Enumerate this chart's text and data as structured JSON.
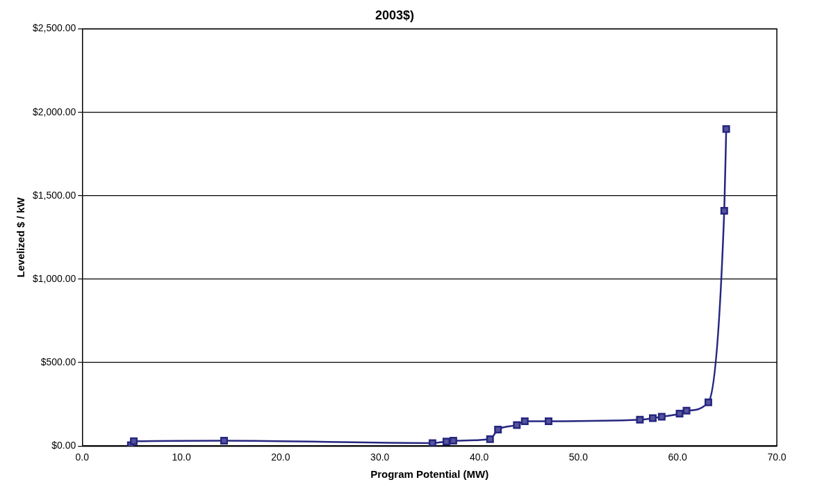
{
  "chart_data": {
    "type": "line",
    "title": "2003$)",
    "xlabel": "Program Potential (MW)",
    "ylabel": "Levelized $ / kW",
    "x": [
      4.9,
      5.2,
      14.3,
      35.3,
      36.7,
      37.4,
      41.1,
      41.9,
      43.8,
      44.6,
      47.0,
      56.2,
      57.5,
      58.4,
      60.2,
      60.9,
      63.1,
      64.7,
      64.9
    ],
    "series": [
      {
        "color": "#262680",
        "values": [
          5,
          29,
          32,
          18,
          27,
          32,
          41,
          99,
          126,
          149,
          149,
          158,
          167,
          176,
          194,
          212,
          262,
          1410,
          1900
        ]
      }
    ],
    "xlim": [
      0,
      70
    ],
    "xticks": [
      {
        "value": 0,
        "label": "0.0"
      },
      {
        "value": 10,
        "label": "10.0"
      },
      {
        "value": 20,
        "label": "20.0"
      },
      {
        "value": 30,
        "label": "30.0"
      },
      {
        "value": 40,
        "label": "40.0"
      },
      {
        "value": 50,
        "label": "50.0"
      },
      {
        "value": 60,
        "label": "60.0"
      },
      {
        "value": 70,
        "label": "70.0"
      }
    ],
    "ylim": [
      0,
      2500
    ],
    "yticks": [
      {
        "value": 0,
        "label": "$0.00"
      },
      {
        "value": 500,
        "label": "$500.00"
      },
      {
        "value": 1000,
        "label": "$1,000.00"
      },
      {
        "value": 1500,
        "label": "$1,500.00"
      },
      {
        "value": 2000,
        "label": "$2,000.00"
      },
      {
        "value": 2500,
        "label": "$2,500.00"
      }
    ],
    "grid": "y",
    "legend": false,
    "marker": "square",
    "line_style": "solid"
  }
}
